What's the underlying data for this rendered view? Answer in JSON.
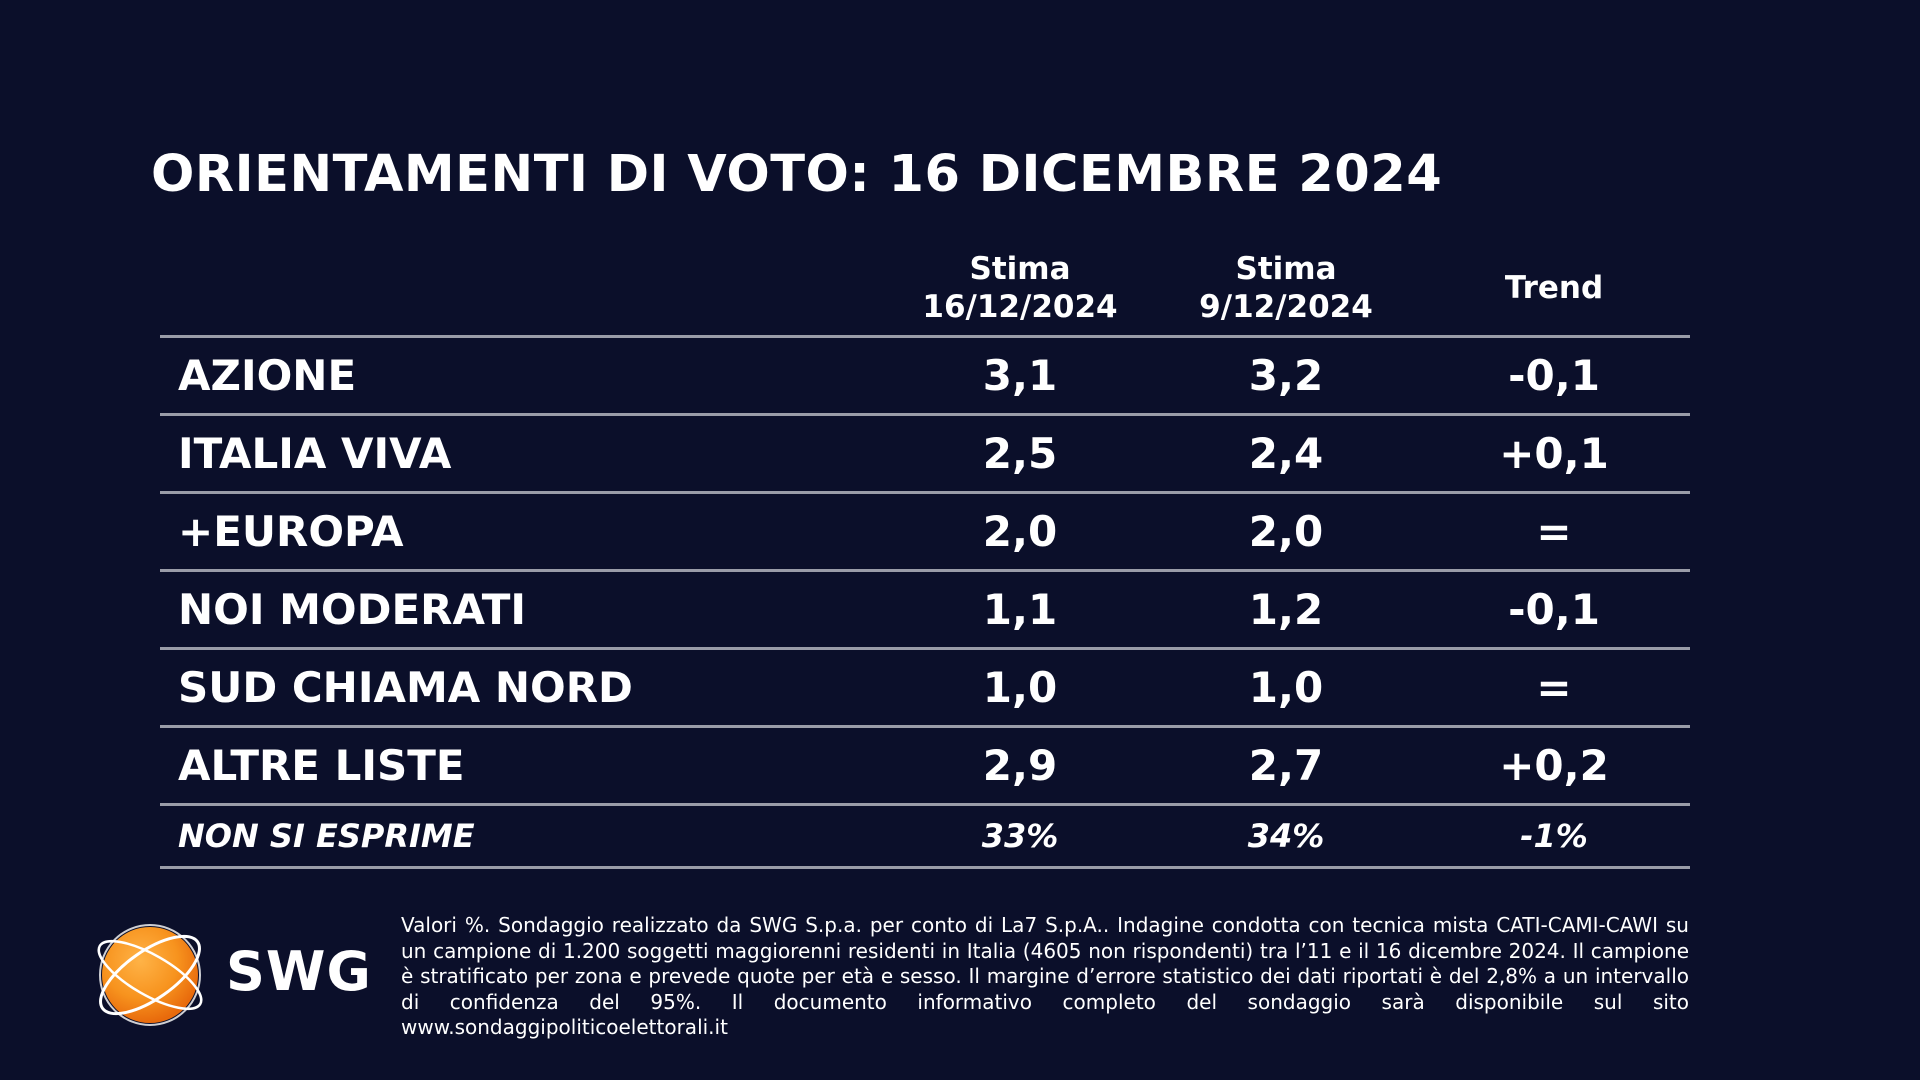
{
  "title": "ORIENTAMENTI DI VOTO: 16 DICEMBRE 2024",
  "header": {
    "col1_line1": "Stima",
    "col1_line2": "16/12/2024",
    "col2_line1": "Stima",
    "col2_line2": "9/12/2024",
    "col3": "Trend"
  },
  "rows": [
    {
      "party": "AZIONE",
      "current": "3,1",
      "previous": "3,2",
      "trend": "-0,1"
    },
    {
      "party": "ITALIA VIVA",
      "current": "2,5",
      "previous": "2,4",
      "trend": "+0,1"
    },
    {
      "party": "+EUROPA",
      "current": "2,0",
      "previous": "2,0",
      "trend": "="
    },
    {
      "party": "NOI MODERATI",
      "current": "1,1",
      "previous": "1,2",
      "trend": "-0,1"
    },
    {
      "party": "SUD CHIAMA NORD",
      "current": "1,0",
      "previous": "1,0",
      "trend": "="
    },
    {
      "party": "ALTRE LISTE",
      "current": "2,9",
      "previous": "2,7",
      "trend": "+0,2"
    }
  ],
  "non_si_esprime": {
    "label": "NON SI ESPRIME",
    "current": "33%",
    "previous": "34%",
    "trend": "-1%"
  },
  "logo": {
    "text": "SWG",
    "icon": "orange-globe-icon",
    "accent": "#f7931e"
  },
  "footnote": "Valori %. Sondaggio realizzato da SWG S.p.a. per conto di La7 S.p.A.. Indagine condotta con tecnica mista CATI-CAMI-CAWI su un campione di 1.200 soggetti maggiorenni residenti in Italia (4605 non rispondenti) tra l’11 e il 16 dicembre 2024. Il campione è stratificato per zona e prevede quote per età e sesso. Il margine d’errore statistico dei dati riportati è del 2,8% a un intervallo di confidenza del 95%. Il documento informativo completo del sondaggio sarà disponibile sul sito www.sondaggipoliticoelettorali.it",
  "colors": {
    "background": "#0b0f2a",
    "text": "#ffffff",
    "divider": "#9a9ca8"
  }
}
